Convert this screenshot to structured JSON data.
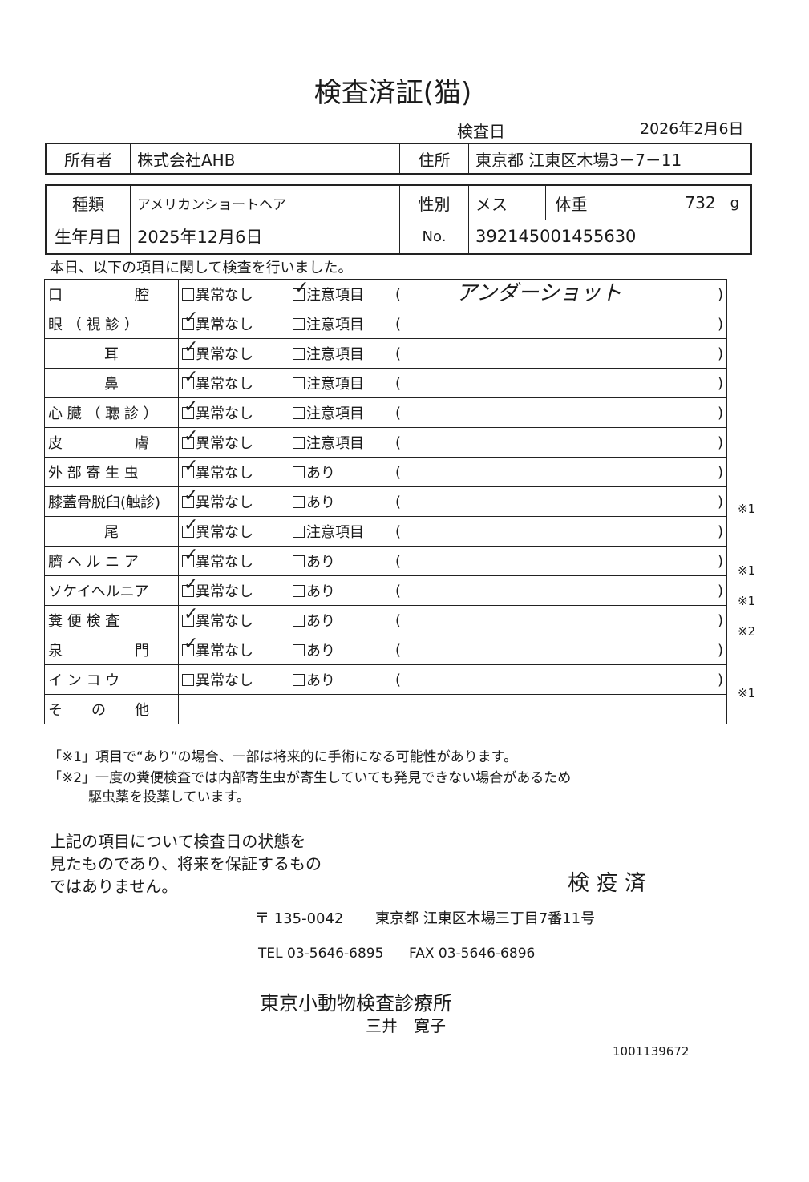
{
  "title": "検査済証(猫)",
  "exam_date_label": "検査日",
  "exam_date": "2026年2月6日",
  "owner": {
    "label": "所有者",
    "value": "株式会社AHB",
    "address_label": "住所",
    "address": "東京都 江東区木場3－7－11"
  },
  "animal": {
    "breed_label": "種類",
    "breed": "アメリカンショートヘア",
    "sex_label": "性別",
    "sex": "メス",
    "weight_label": "体重",
    "weight": "732",
    "weight_unit": "g",
    "dob_label": "生年月日",
    "dob": "2025年12月6日",
    "no_label": "No.",
    "no": "392145001455630"
  },
  "intro": "本日、以下の項目に関して検査を行いました。",
  "labels": {
    "normal": "異常なし",
    "attention": "注意項目",
    "present": "あり",
    "open": "(",
    "close": ")"
  },
  "rows": [
    {
      "name": "口　　　　　腔",
      "normal": false,
      "alt": "注意項目",
      "alt_checked": true,
      "note": "アンダーショット",
      "mark": ""
    },
    {
      "name": "眼 （ 視 診 ）",
      "normal": true,
      "alt": "注意項目",
      "alt_checked": false,
      "note": "",
      "mark": ""
    },
    {
      "name": "耳",
      "normal": true,
      "alt": "注意項目",
      "alt_checked": false,
      "note": "",
      "mark": "",
      "center": true
    },
    {
      "name": "鼻",
      "normal": true,
      "alt": "注意項目",
      "alt_checked": false,
      "note": "",
      "mark": "",
      "center": true
    },
    {
      "name": "心 臓 （ 聴 診 ）",
      "normal": true,
      "alt": "注意項目",
      "alt_checked": false,
      "note": "",
      "mark": ""
    },
    {
      "name": "皮　　　　　膚",
      "normal": true,
      "alt": "注意項目",
      "alt_checked": false,
      "note": "",
      "mark": ""
    },
    {
      "name": "外 部 寄 生 虫",
      "normal": true,
      "alt": "あり",
      "alt_checked": false,
      "note": "",
      "mark": ""
    },
    {
      "name": "膝蓋骨脱臼(触診)",
      "normal": true,
      "alt": "あり",
      "alt_checked": false,
      "note": "",
      "mark": "※1"
    },
    {
      "name": "尾",
      "normal": true,
      "alt": "注意項目",
      "alt_checked": false,
      "note": "",
      "mark": "",
      "center": true
    },
    {
      "name": "臍 ヘ ル ニ ア",
      "normal": true,
      "alt": "あり",
      "alt_checked": false,
      "note": "",
      "mark": "※1"
    },
    {
      "name": "ソケイヘルニア",
      "normal": true,
      "alt": "あり",
      "alt_checked": false,
      "note": "",
      "mark": "※1"
    },
    {
      "name": "糞 便 検 査",
      "normal": true,
      "alt": "あり",
      "alt_checked": false,
      "note": "",
      "mark": "※2"
    },
    {
      "name": "泉　　　　　門",
      "normal": true,
      "alt": "あり",
      "alt_checked": false,
      "note": "",
      "mark": ""
    },
    {
      "name": "イ ン コ ウ",
      "normal": false,
      "alt": "あり",
      "alt_checked": false,
      "note": "",
      "mark": "※1"
    }
  ],
  "other_label": "そ　　の　　他",
  "footnote1": "「※1」項目で“あり”の場合、一部は将来的に手術になる可能性があります。",
  "footnote2": "「※2」一度の糞便検査では内部寄生虫が寄生していても発見できない場合があるため",
  "footnote2b": "駆虫薬を投薬しています。",
  "disclaimer": [
    "上記の項目について検査日の状態を",
    "見たものであり、将来を保証するもの",
    "ではありません。"
  ],
  "stamp": "検 疫 済",
  "postal": "〒 135-0042",
  "clinic_address": "東京都 江東区木場三丁目7番11号",
  "tel": "TEL 03-5646-6895",
  "fax": "FAX 03-5646-6896",
  "clinic_name": "東京小動物検査診療所",
  "doctor": "三井　寛子",
  "doc_id": "1001139672"
}
